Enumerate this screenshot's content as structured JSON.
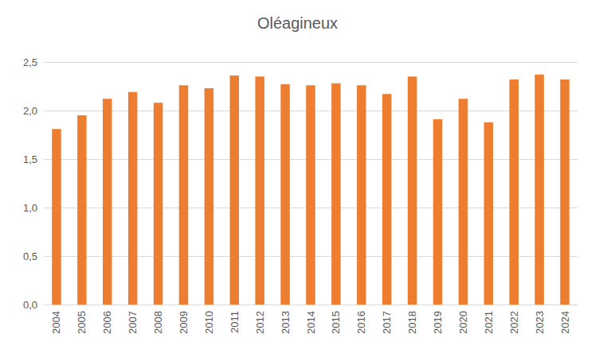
{
  "chart_data": {
    "type": "bar",
    "title": "Oléagineux",
    "categories": [
      "2004",
      "2005",
      "2006",
      "2007",
      "2008",
      "2009",
      "2010",
      "2011",
      "2012",
      "2013",
      "2014",
      "2015",
      "2016",
      "2017",
      "2018",
      "2019",
      "2020",
      "2021",
      "2022",
      "2023",
      "2024"
    ],
    "values": [
      1.81,
      1.95,
      2.12,
      2.19,
      2.08,
      2.26,
      2.23,
      2.36,
      2.35,
      2.27,
      2.26,
      2.28,
      2.26,
      2.17,
      2.35,
      1.91,
      2.12,
      1.88,
      2.32,
      2.37,
      2.32
    ],
    "color": "#ed7d31",
    "ylim": [
      0,
      2.5
    ],
    "yticks": [
      {
        "value": 0,
        "label": "0,0"
      },
      {
        "value": 0.5,
        "label": "0,5"
      },
      {
        "value": 1,
        "label": "1,0"
      },
      {
        "value": 1.5,
        "label": "1,5"
      },
      {
        "value": 2,
        "label": "2,0"
      },
      {
        "value": 2.5,
        "label": "2,5"
      }
    ],
    "grid": true
  }
}
